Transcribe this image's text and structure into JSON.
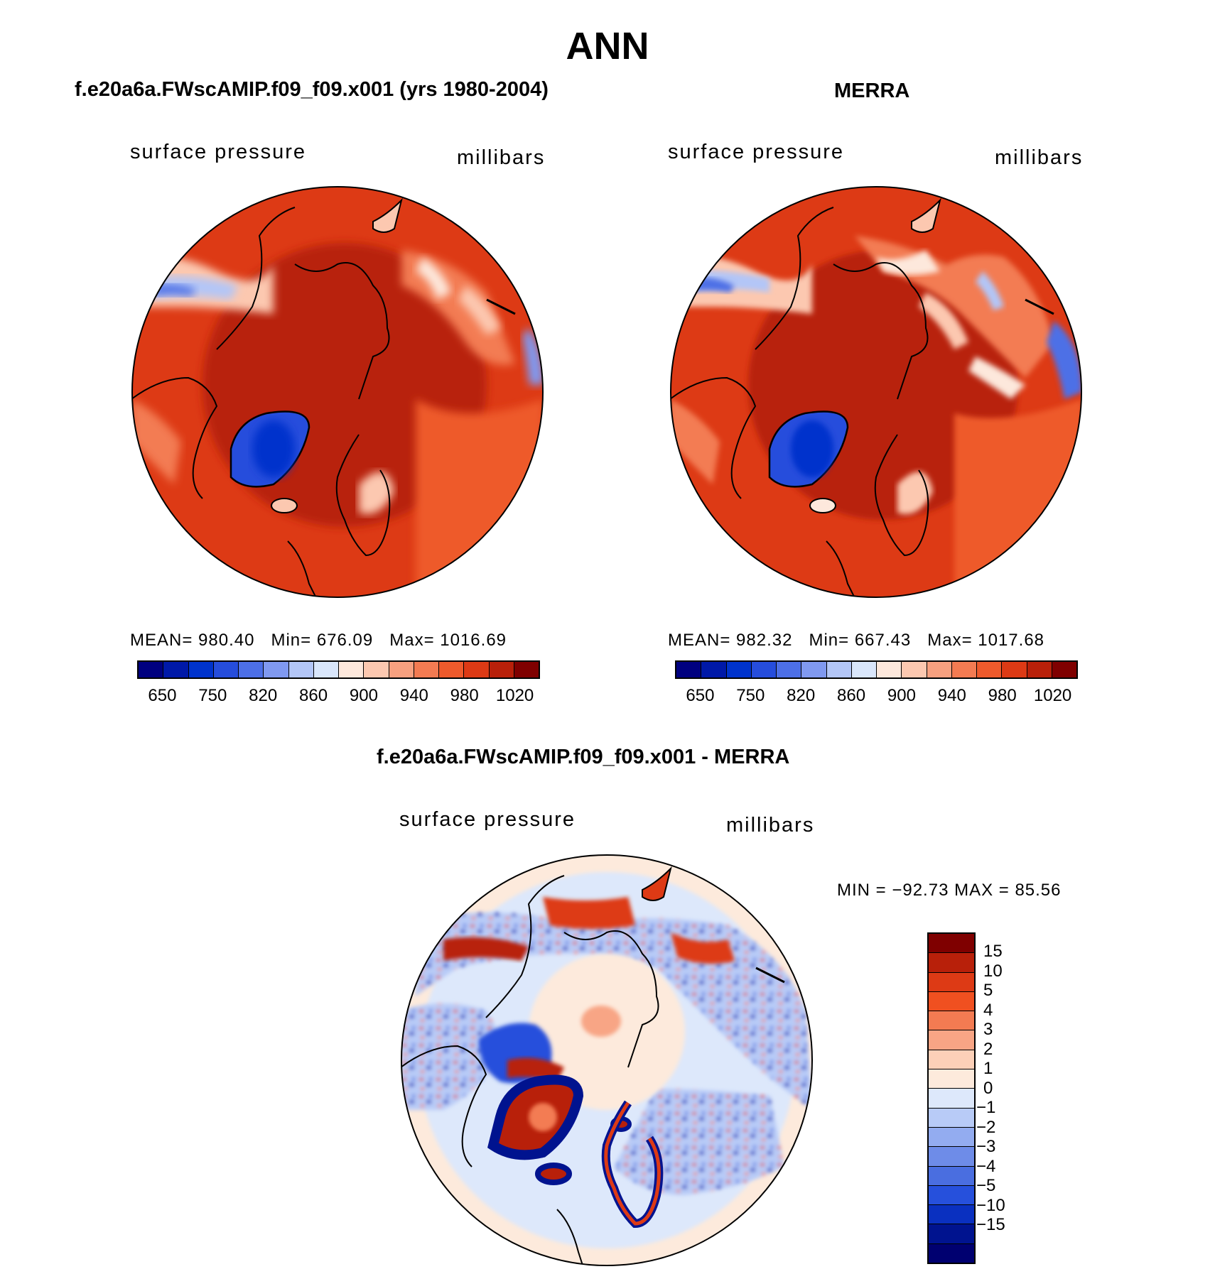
{
  "figure_title": "ANN",
  "panels": [
    {
      "title": "f.e20a6a.FWscAMIP.f09_f09.x001 (yrs 1980-2004)",
      "variable": "surface pressure",
      "units": "millibars",
      "mean_label": "MEAN=",
      "mean": "980.40",
      "min_label": "Min=",
      "min": "676.09",
      "max_label": "Max=",
      "max": "1016.69"
    },
    {
      "title": "MERRA",
      "variable": "surface pressure",
      "units": "millibars",
      "mean_label": "MEAN=",
      "mean": "982.32",
      "min_label": "Min=",
      "min": "667.43",
      "max_label": "Max=",
      "max": "1017.68"
    }
  ],
  "diff_panel": {
    "title": "f.e20a6a.FWscAMIP.f09_f09.x001 - MERRA",
    "variable": "surface pressure",
    "units": "millibars",
    "minmax_text": "MIN = −92.73 MAX =  85.56"
  },
  "abs_colorbar": {
    "colors": [
      "#00007f",
      "#0019a8",
      "#0033cc",
      "#264ddc",
      "#4d6fe6",
      "#8099f0",
      "#b3c6f7",
      "#d9e6fb",
      "#fde8dc",
      "#fcc8b0",
      "#f7a07f",
      "#f37b52",
      "#ee5a2c",
      "#dd3a15",
      "#b8200a",
      "#7f0000"
    ],
    "labels": [
      "650",
      "750",
      "820",
      "860",
      "900",
      "940",
      "980",
      "1020"
    ]
  },
  "diff_colorbar": {
    "colors": [
      "#7f0000",
      "#b8200a",
      "#dd3a15",
      "#f05020",
      "#f37b52",
      "#f8a585",
      "#fcd0b8",
      "#fdeadc",
      "#dde8fb",
      "#b8cbf7",
      "#93acf0",
      "#6e8ce8",
      "#4a6ee0",
      "#2650dc",
      "#0a30c0",
      "#00138f",
      "#000070"
    ],
    "labels": [
      "15",
      "10",
      "5",
      "4",
      "3",
      "2",
      "1",
      "0",
      "−1",
      "−2",
      "−3",
      "−4",
      "−5",
      "−10",
      "−15"
    ]
  },
  "chart_data": [
    {
      "type": "heatmap",
      "title": "f.e20a6a.FWscAMIP.f09_f09.x001 (yrs 1980-2004)",
      "variable": "surface pressure",
      "units": "millibars",
      "projection": "north polar stereographic",
      "stats": {
        "mean": 980.4,
        "min": 676.09,
        "max": 1016.69
      },
      "contour_levels": [
        650,
        700,
        750,
        800,
        820,
        840,
        860,
        880,
        900,
        920,
        940,
        960,
        980,
        1000,
        1020
      ]
    },
    {
      "type": "heatmap",
      "title": "MERRA",
      "variable": "surface pressure",
      "units": "millibars",
      "projection": "north polar stereographic",
      "stats": {
        "mean": 982.32,
        "min": 667.43,
        "max": 1017.68
      },
      "contour_levels": [
        650,
        700,
        750,
        800,
        820,
        840,
        860,
        880,
        900,
        920,
        940,
        960,
        980,
        1000,
        1020
      ]
    },
    {
      "type": "heatmap",
      "title": "f.e20a6a.FWscAMIP.f09_f09.x001 - MERRA",
      "variable": "surface pressure",
      "units": "millibars",
      "projection": "north polar stereographic",
      "stats": {
        "min": -92.73,
        "max": 85.56
      },
      "contour_levels": [
        -15,
        -10,
        -5,
        -4,
        -3,
        -2,
        -1,
        0,
        1,
        2,
        3,
        4,
        5,
        10,
        15
      ]
    }
  ]
}
